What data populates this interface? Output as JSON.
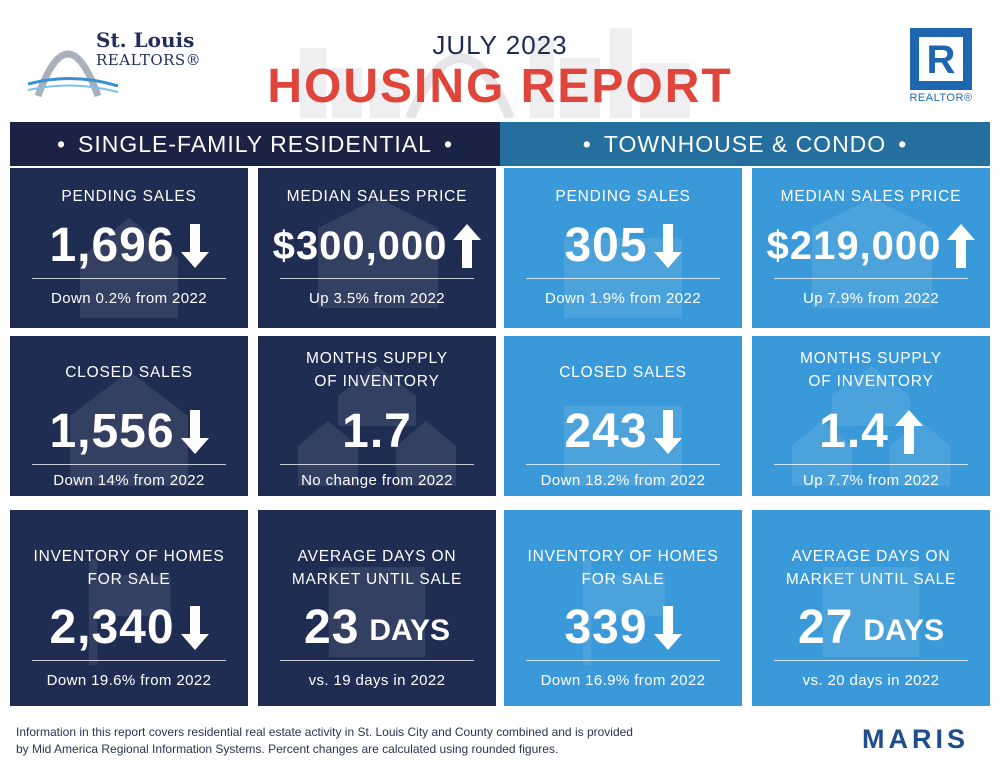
{
  "header": {
    "logo_line1": "St. Louis",
    "logo_line2": "REALTORS®",
    "title_sub": "JULY 2023",
    "title_main": "HOUSING REPORT",
    "realtor_label": "REALTOR®",
    "realtor_mark": "R"
  },
  "colors": {
    "dark_panel": "#1f2d52",
    "light_panel": "#3a9ad9",
    "title_red": "#e0453b",
    "navy": "#1d2a53"
  },
  "sections": {
    "left": {
      "title": "SINGLE-FAMILY RESIDENTIAL",
      "cards": [
        {
          "label": "PENDING SALES",
          "value": "1,696",
          "unit": "",
          "arrow": "down",
          "change": "Down 0.2% from 2022"
        },
        {
          "label": "MEDIAN SALES PRICE",
          "value": "$300,000",
          "unit": "",
          "arrow": "up",
          "change": "Up 3.5% from 2022"
        },
        {
          "label": "CLOSED SALES",
          "value": "1,556",
          "unit": "",
          "arrow": "down",
          "change": "Down 14% from 2022"
        },
        {
          "label_line1": "MONTHS SUPPLY",
          "label_line2": "OF INVENTORY",
          "value": "1.7",
          "unit": "",
          "arrow": "none",
          "change": "No change from 2022"
        },
        {
          "label_line1": "INVENTORY OF HOMES",
          "label_line2": "FOR SALE",
          "value": "2,340",
          "unit": "",
          "arrow": "down",
          "change": "Down 19.6% from 2022"
        },
        {
          "label_line1": "AVERAGE DAYS ON",
          "label_line2": "MARKET UNTIL SALE",
          "value": "23",
          "unit": "DAYS",
          "arrow": "none",
          "change": "vs. 19 days in 2022"
        }
      ]
    },
    "right": {
      "title": "TOWNHOUSE & CONDO",
      "cards": [
        {
          "label": "PENDING SALES",
          "value": "305",
          "unit": "",
          "arrow": "down",
          "change": "Down 1.9% from 2022"
        },
        {
          "label": "MEDIAN SALES PRICE",
          "value": "$219,000",
          "unit": "",
          "arrow": "up",
          "change": "Up 7.9% from 2022"
        },
        {
          "label": "CLOSED SALES",
          "value": "243",
          "unit": "",
          "arrow": "down",
          "change": "Down 18.2% from 2022"
        },
        {
          "label_line1": "MONTHS SUPPLY",
          "label_line2": "OF INVENTORY",
          "value": "1.4",
          "unit": "",
          "arrow": "up",
          "change": "Up 7.7% from 2022"
        },
        {
          "label_line1": "INVENTORY OF HOMES",
          "label_line2": "FOR SALE",
          "value": "339",
          "unit": "",
          "arrow": "down",
          "change": "Down 16.9% from 2022"
        },
        {
          "label_line1": "AVERAGE DAYS ON",
          "label_line2": "MARKET UNTIL SALE",
          "value": "27",
          "unit": "DAYS",
          "arrow": "none",
          "change": "vs. 20 days in 2022"
        }
      ]
    }
  },
  "footer": {
    "line1": "Information in this report covers residential real estate activity in St. Louis City and County combined and is provided",
    "line2": "by Mid America Regional Information Systems. Percent changes are calculated using rounded figures.",
    "brand": "MARIS"
  }
}
